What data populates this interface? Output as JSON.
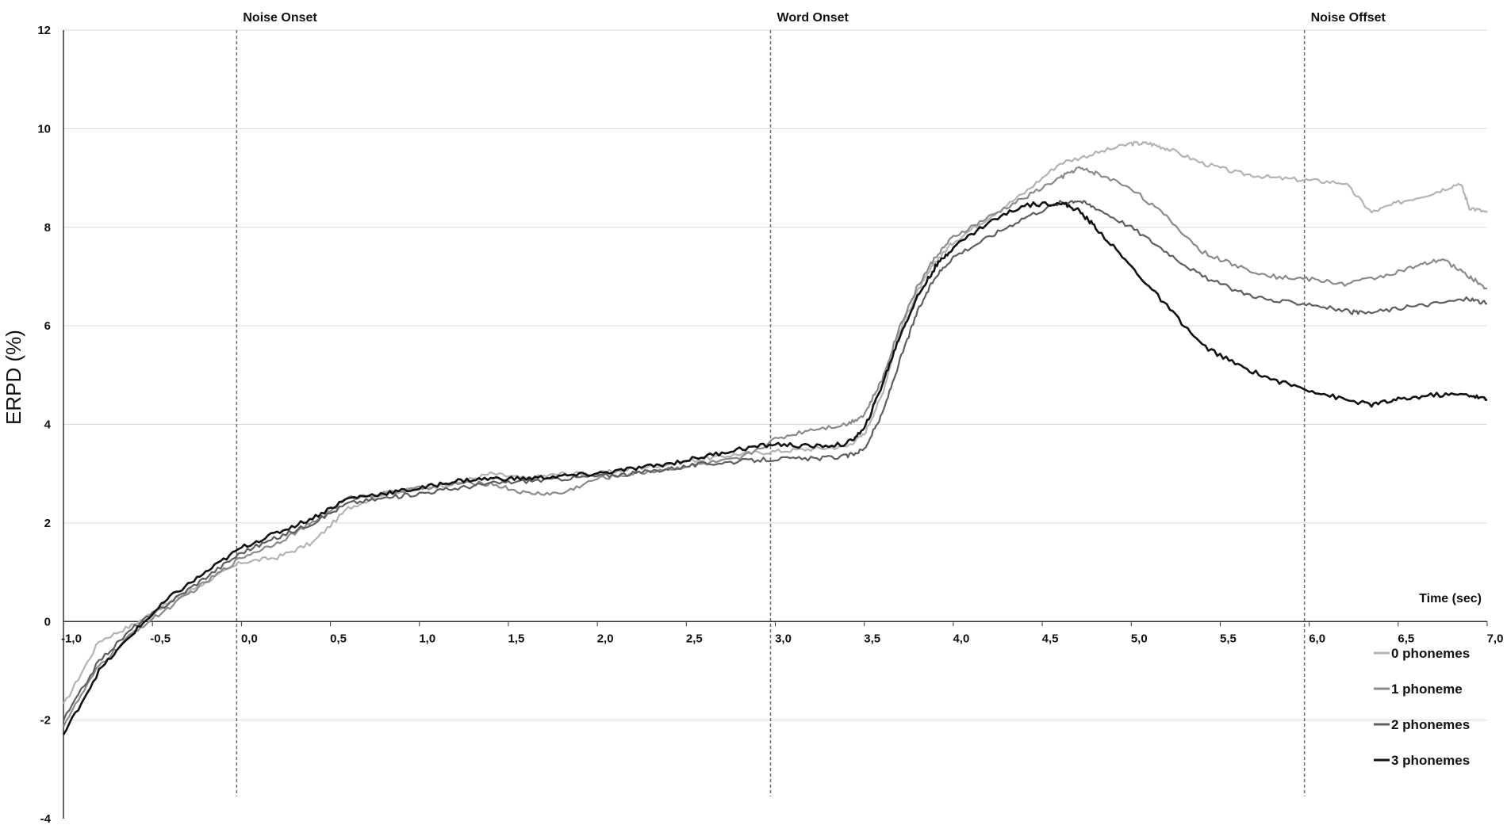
{
  "chart_data": {
    "type": "line",
    "title": "",
    "xlabel": "Time (sec)",
    "ylabel": "ERPD (%)",
    "xlim": [
      -1.0,
      7.0
    ],
    "ylim": [
      -4,
      12
    ],
    "x_ticks": [
      -1.0,
      -0.5,
      0.0,
      0.5,
      1.0,
      1.5,
      2.0,
      2.5,
      3.0,
      3.5,
      4.0,
      4.5,
      5.0,
      5.5,
      6.0,
      6.5,
      7.0
    ],
    "x_tick_labels": [
      "-1,0",
      "-0,5",
      "0,0",
      "0,5",
      "1,0",
      "1,5",
      "2,0",
      "2,5",
      "3,0",
      "3,5",
      "4,0",
      "4,5",
      "5,0",
      "5,5",
      "6,0",
      "6,5",
      "7,0"
    ],
    "y_ticks": [
      -4,
      -2,
      0,
      2,
      4,
      6,
      8,
      10,
      12
    ],
    "y_tick_labels": [
      "-4",
      "-2",
      "0",
      "2",
      "4",
      "6",
      "8",
      "10",
      "12"
    ],
    "grid": "horizontal",
    "legend_placement": "bottom-right",
    "events": [
      {
        "x": 0.0,
        "label": "Noise Onset"
      },
      {
        "x": 3.0,
        "label": "Word Onset"
      },
      {
        "x": 6.0,
        "label": "Noise Offset"
      }
    ],
    "series": [
      {
        "name": "0 phonemes",
        "color": "#b3b3b3",
        "x": [
          -1.0,
          -0.8,
          -0.6,
          -0.4,
          -0.2,
          0.0,
          0.2,
          0.4,
          0.6,
          0.8,
          1.0,
          1.2,
          1.4,
          1.6,
          1.8,
          2.0,
          2.2,
          2.4,
          2.6,
          2.8,
          3.0,
          3.2,
          3.4,
          3.5,
          3.6,
          3.7,
          3.8,
          3.9,
          4.0,
          4.2,
          4.4,
          4.6,
          4.8,
          5.0,
          5.1,
          5.2,
          5.4,
          5.6,
          5.8,
          6.0,
          6.2,
          6.35,
          6.5,
          6.7,
          6.85,
          6.9,
          7.0
        ],
        "values": [
          -1.7,
          -0.4,
          -0.05,
          0.4,
          0.8,
          1.2,
          1.3,
          1.6,
          2.3,
          2.6,
          2.7,
          2.8,
          3.0,
          2.9,
          3.0,
          3.0,
          3.1,
          3.2,
          3.3,
          3.4,
          3.45,
          3.5,
          3.55,
          3.8,
          4.6,
          5.9,
          6.7,
          7.3,
          7.7,
          8.2,
          8.7,
          9.3,
          9.5,
          9.7,
          9.7,
          9.6,
          9.3,
          9.1,
          9.0,
          8.95,
          8.9,
          8.3,
          8.5,
          8.7,
          8.9,
          8.4,
          8.3
        ]
      },
      {
        "name": "1 phoneme",
        "color": "#8a8a8a",
        "x": [
          -1.0,
          -0.8,
          -0.6,
          -0.4,
          -0.2,
          0.0,
          0.2,
          0.4,
          0.6,
          0.8,
          1.0,
          1.2,
          1.4,
          1.6,
          1.8,
          2.0,
          2.2,
          2.4,
          2.6,
          2.8,
          3.0,
          3.2,
          3.4,
          3.5,
          3.6,
          3.7,
          3.8,
          3.9,
          4.0,
          4.2,
          4.4,
          4.6,
          4.7,
          4.8,
          5.0,
          5.2,
          5.4,
          5.6,
          5.8,
          6.0,
          6.2,
          6.4,
          6.6,
          6.75,
          6.9,
          7.0
        ],
        "values": [
          -2.1,
          -0.9,
          -0.2,
          0.3,
          0.8,
          1.3,
          1.6,
          2.0,
          2.5,
          2.6,
          2.7,
          2.8,
          2.8,
          2.6,
          2.6,
          2.9,
          3.0,
          3.1,
          3.2,
          3.3,
          3.7,
          3.9,
          4.0,
          4.2,
          4.9,
          6.0,
          6.8,
          7.4,
          7.8,
          8.2,
          8.6,
          9.0,
          9.2,
          9.1,
          8.8,
          8.2,
          7.5,
          7.2,
          7.0,
          6.95,
          6.85,
          7.0,
          7.2,
          7.35,
          7.0,
          6.75
        ]
      },
      {
        "name": "2 phonemes",
        "color": "#5e5e5e",
        "x": [
          -1.0,
          -0.8,
          -0.6,
          -0.4,
          -0.2,
          0.0,
          0.2,
          0.4,
          0.6,
          0.8,
          1.0,
          1.2,
          1.4,
          1.6,
          1.8,
          2.0,
          2.2,
          2.4,
          2.6,
          2.8,
          3.0,
          3.2,
          3.4,
          3.5,
          3.6,
          3.7,
          3.8,
          3.9,
          4.0,
          4.2,
          4.4,
          4.6,
          4.7,
          4.8,
          5.0,
          5.2,
          5.4,
          5.6,
          5.8,
          6.0,
          6.2,
          6.3,
          6.5,
          6.7,
          6.9,
          7.0
        ],
        "values": [
          -2.0,
          -0.8,
          -0.1,
          0.4,
          0.9,
          1.4,
          1.7,
          2.0,
          2.4,
          2.5,
          2.6,
          2.7,
          2.8,
          2.85,
          2.9,
          2.95,
          3.0,
          3.1,
          3.2,
          3.25,
          3.3,
          3.3,
          3.35,
          3.5,
          4.2,
          5.3,
          6.3,
          7.0,
          7.4,
          7.8,
          8.2,
          8.5,
          8.55,
          8.4,
          8.0,
          7.5,
          7.0,
          6.7,
          6.5,
          6.45,
          6.3,
          6.25,
          6.35,
          6.45,
          6.55,
          6.45
        ]
      },
      {
        "name": "3 phonemes",
        "color": "#111111",
        "x": [
          -1.0,
          -0.8,
          -0.6,
          -0.4,
          -0.2,
          0.0,
          0.2,
          0.4,
          0.6,
          0.8,
          1.0,
          1.2,
          1.4,
          1.6,
          1.8,
          2.0,
          2.2,
          2.4,
          2.6,
          2.8,
          3.0,
          3.2,
          3.4,
          3.5,
          3.6,
          3.7,
          3.8,
          3.9,
          4.0,
          4.2,
          4.4,
          4.6,
          4.7,
          4.8,
          5.0,
          5.2,
          5.4,
          5.6,
          5.8,
          6.0,
          6.2,
          6.35,
          6.5,
          6.7,
          6.9,
          7.0
        ],
        "values": [
          -2.3,
          -1.0,
          -0.2,
          0.5,
          1.0,
          1.5,
          1.8,
          2.1,
          2.5,
          2.6,
          2.7,
          2.85,
          2.9,
          2.9,
          2.95,
          3.0,
          3.1,
          3.2,
          3.35,
          3.5,
          3.6,
          3.55,
          3.6,
          3.9,
          4.8,
          5.8,
          6.6,
          7.2,
          7.6,
          8.1,
          8.45,
          8.5,
          8.35,
          8.0,
          7.2,
          6.4,
          5.6,
          5.2,
          4.9,
          4.7,
          4.5,
          4.4,
          4.5,
          4.6,
          4.6,
          4.5
        ]
      }
    ]
  }
}
